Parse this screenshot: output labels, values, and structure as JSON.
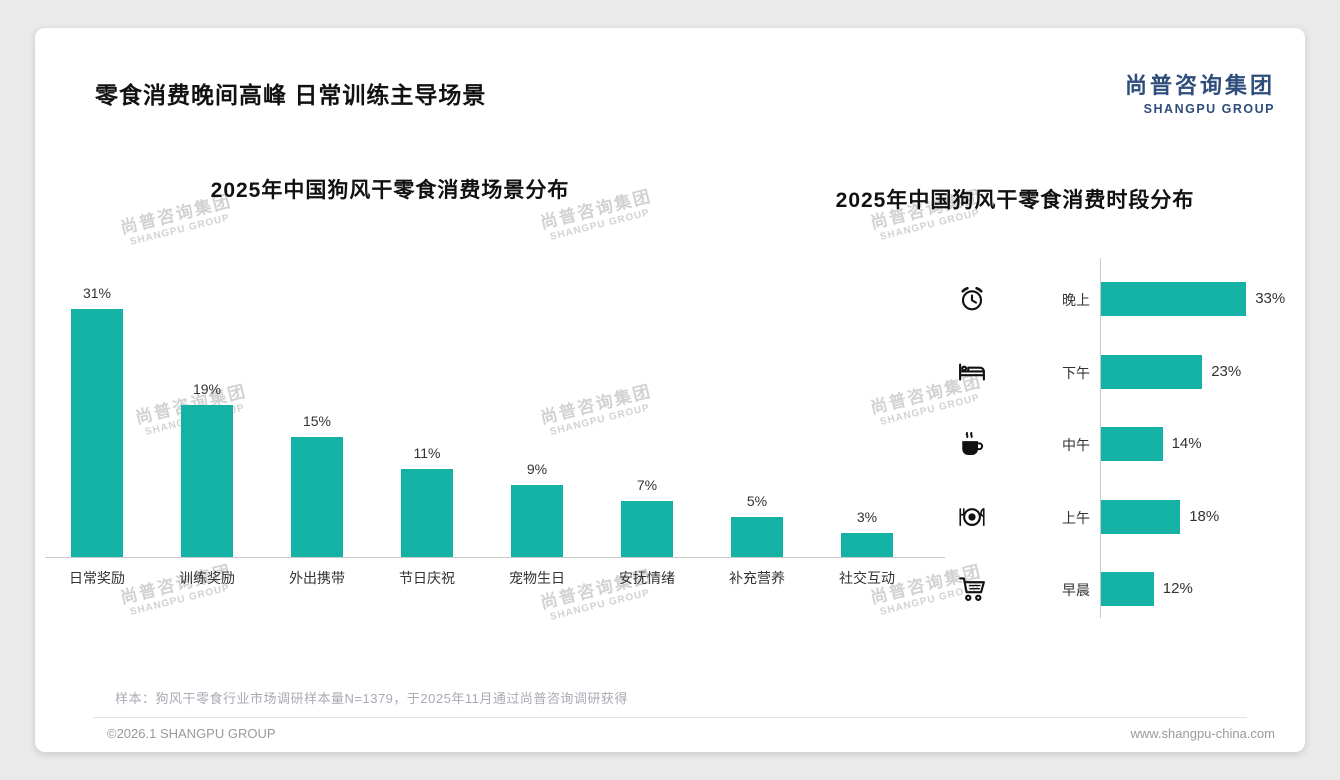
{
  "page": {
    "title": "零食消费晚间高峰 日常训练主导场景",
    "logo": {
      "cn": "尚普咨询集团",
      "en": "SHANGPU GROUP"
    },
    "watermark": {
      "cn": "尚普咨询集团",
      "en": "SHANGPU GROUP"
    },
    "footnote": "样本：狗风干零食行业市场调研样本量N=1379，于2025年11月通过尚普咨询调研获得",
    "copyright": "©2026.1 SHANGPU GROUP",
    "website": "www.shangpu-china.com",
    "accent_color": "#14b1a5",
    "logo_color": "#2e4d7b"
  },
  "chart_data": [
    {
      "type": "bar",
      "orientation": "vertical",
      "title": "2025年中国狗风干零食消费场景分布",
      "categories": [
        "日常奖励",
        "训练奖励",
        "外出携带",
        "节日庆祝",
        "宠物生日",
        "安抚情绪",
        "补充营养",
        "社交互动"
      ],
      "values": [
        31,
        19,
        15,
        11,
        9,
        7,
        5,
        3
      ],
      "unit": "%",
      "bar_color": "#14b1a5",
      "ylim": [
        0,
        35
      ],
      "grid": false,
      "legend": "none"
    },
    {
      "type": "bar",
      "orientation": "horizontal",
      "title": "2025年中国狗风干零食消费时段分布",
      "categories": [
        "晚上",
        "下午",
        "中午",
        "上午",
        "早晨"
      ],
      "values": [
        33,
        23,
        14,
        18,
        12
      ],
      "icons": [
        "alarm-clock",
        "bed",
        "coffee",
        "dining",
        "cart"
      ],
      "unit": "%",
      "bar_color": "#14b1a5",
      "xlim": [
        0,
        35
      ],
      "grid": false,
      "legend": "none"
    }
  ]
}
